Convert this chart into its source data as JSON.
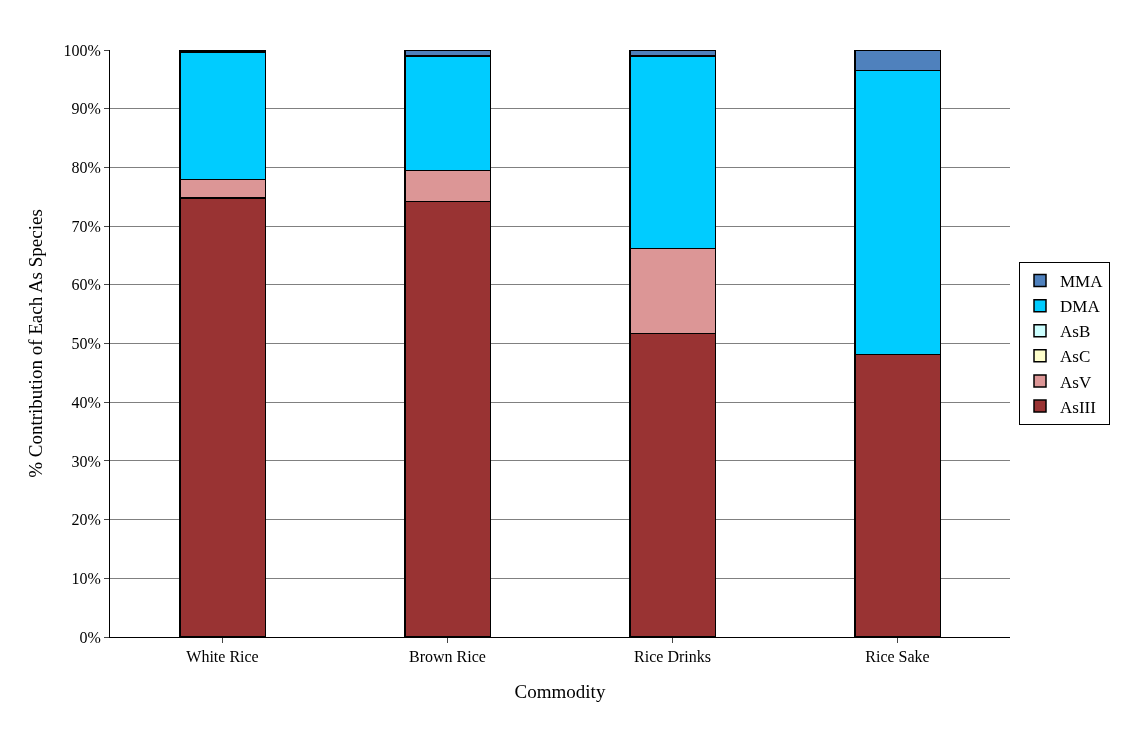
{
  "chart_data": {
    "type": "bar",
    "stacked": true,
    "xlabel": "Commodity",
    "ylabel": "% Contribution of Each As Species",
    "categories": [
      "White Rice",
      "Brown Rice",
      "Rice Drinks",
      "Rice Sake"
    ],
    "series": [
      {
        "name": "AsIII",
        "color": "#993333",
        "values": [
          74.8,
          74.2,
          51.7,
          48.1
        ]
      },
      {
        "name": "AsV",
        "color": "#dc9696",
        "values": [
          3.1,
          5.3,
          14.5,
          0
        ]
      },
      {
        "name": "AsC",
        "color": "#ffffcc",
        "values": [
          0,
          0,
          0,
          0
        ]
      },
      {
        "name": "AsB",
        "color": "#ccffff",
        "values": [
          0,
          0,
          0,
          0
        ]
      },
      {
        "name": "DMA",
        "color": "#00ccff",
        "values": [
          21.8,
          19.5,
          32.8,
          48.4
        ]
      },
      {
        "name": "MMA",
        "color": "#4f81bd",
        "values": [
          0.3,
          1.0,
          1.0,
          3.5
        ]
      }
    ],
    "ylim": [
      0,
      100
    ],
    "yticks": [
      {
        "value": 0,
        "label": "0%"
      },
      {
        "value": 10,
        "label": "10%"
      },
      {
        "value": 20,
        "label": "20%"
      },
      {
        "value": 30,
        "label": "30%"
      },
      {
        "value": 40,
        "label": "40%"
      },
      {
        "value": 50,
        "label": "50%"
      },
      {
        "value": 60,
        "label": "60%"
      },
      {
        "value": 70,
        "label": "70%"
      },
      {
        "value": 80,
        "label": "80%"
      },
      {
        "value": 90,
        "label": "90%"
      },
      {
        "value": 100,
        "label": "100%"
      }
    ],
    "grid": "y",
    "legend": "right"
  }
}
